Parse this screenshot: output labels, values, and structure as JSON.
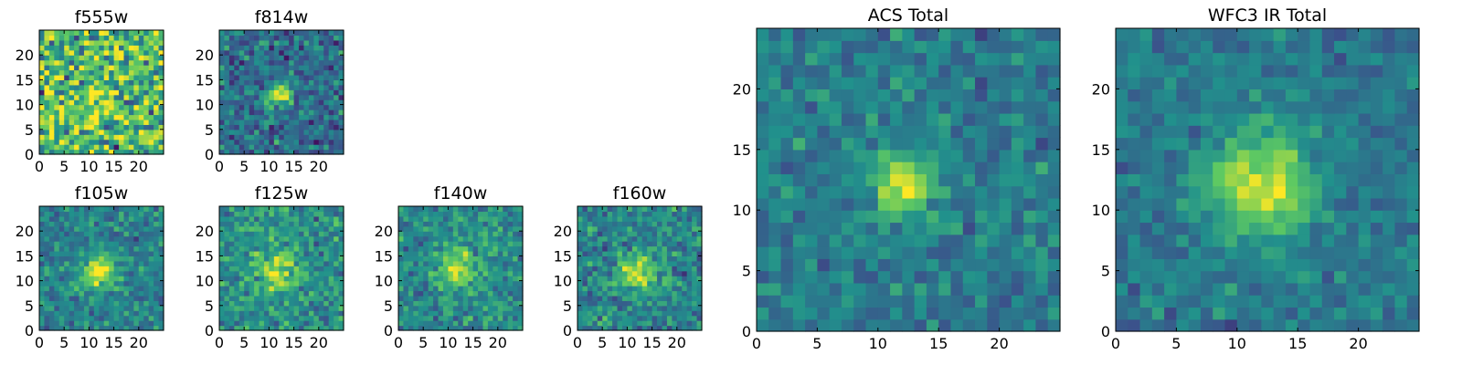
{
  "colormap": {
    "name": "viridis",
    "stops": [
      "#440154",
      "#3b528b",
      "#21918c",
      "#5ec962",
      "#fde725"
    ]
  },
  "chart_data": [
    {
      "type": "heatmap",
      "title": "f555w",
      "xlim": [
        0,
        25
      ],
      "ylim": [
        0,
        25
      ],
      "xticks": [
        0,
        5,
        10,
        15,
        20
      ],
      "yticks": [
        0,
        5,
        10,
        15,
        20
      ],
      "peak": [
        11.5,
        11.5
      ],
      "peak_width": 2.5,
      "peak_amplitude": 0.2,
      "background": 0.68,
      "noise": 0.32,
      "seed": 11
    },
    {
      "type": "heatmap",
      "title": "f814w",
      "xlim": [
        0,
        25
      ],
      "ylim": [
        0,
        25
      ],
      "xticks": [
        0,
        5,
        10,
        15,
        20
      ],
      "yticks": [
        0,
        5,
        10,
        15,
        20
      ],
      "peak": [
        12,
        12
      ],
      "peak_width": 1.6,
      "peak_amplitude": 0.6,
      "background": 0.36,
      "noise": 0.17,
      "seed": 23
    },
    {
      "type": "heatmap",
      "title": "f105w",
      "xlim": [
        0,
        25
      ],
      "ylim": [
        0,
        25
      ],
      "xticks": [
        0,
        5,
        10,
        15,
        20
      ],
      "yticks": [
        0,
        5,
        10,
        15,
        20
      ],
      "peak": [
        12,
        12
      ],
      "peak_width": 2.4,
      "peak_amplitude": 0.52,
      "background": 0.44,
      "noise": 0.14,
      "seed": 37
    },
    {
      "type": "heatmap",
      "title": "f125w",
      "xlim": [
        0,
        25
      ],
      "ylim": [
        0,
        25
      ],
      "xticks": [
        0,
        5,
        10,
        15,
        20
      ],
      "yticks": [
        0,
        5,
        10,
        15,
        20
      ],
      "peak": [
        11.5,
        12
      ],
      "peak_width": 2.6,
      "peak_amplitude": 0.42,
      "background": 0.5,
      "noise": 0.16,
      "seed": 41
    },
    {
      "type": "heatmap",
      "title": "f140w",
      "xlim": [
        0,
        25
      ],
      "ylim": [
        0,
        25
      ],
      "xticks": [
        0,
        5,
        10,
        15,
        20
      ],
      "yticks": [
        0,
        5,
        10,
        15,
        20
      ],
      "peak": [
        12,
        12.5
      ],
      "peak_width": 2.6,
      "peak_amplitude": 0.45,
      "background": 0.48,
      "noise": 0.15,
      "seed": 53
    },
    {
      "type": "heatmap",
      "title": "f160w",
      "xlim": [
        0,
        25
      ],
      "ylim": [
        0,
        25
      ],
      "xticks": [
        0,
        5,
        10,
        15,
        20
      ],
      "yticks": [
        0,
        5,
        10,
        15,
        20
      ],
      "peak": [
        12,
        12
      ],
      "peak_width": 2.6,
      "peak_amplitude": 0.48,
      "background": 0.46,
      "noise": 0.16,
      "seed": 67
    },
    {
      "type": "heatmap",
      "title": "ACS Total",
      "xlim": [
        0,
        25
      ],
      "ylim": [
        0,
        25
      ],
      "xticks": [
        0,
        5,
        10,
        15,
        20
      ],
      "yticks": [
        0,
        5,
        10,
        15,
        20
      ],
      "peak": [
        12,
        12
      ],
      "peak_width": 1.7,
      "peak_amplitude": 0.55,
      "background": 0.42,
      "noise": 0.12,
      "seed": 79
    },
    {
      "type": "heatmap",
      "title": "WFC3 IR Total",
      "xlim": [
        0,
        25
      ],
      "ylim": [
        0,
        25
      ],
      "xticks": [
        0,
        5,
        10,
        15,
        20
      ],
      "yticks": [
        0,
        5,
        10,
        15,
        20
      ],
      "peak": [
        12,
        12
      ],
      "peak_width": 2.9,
      "peak_amplitude": 0.55,
      "background": 0.4,
      "noise": 0.1,
      "seed": 97
    }
  ]
}
